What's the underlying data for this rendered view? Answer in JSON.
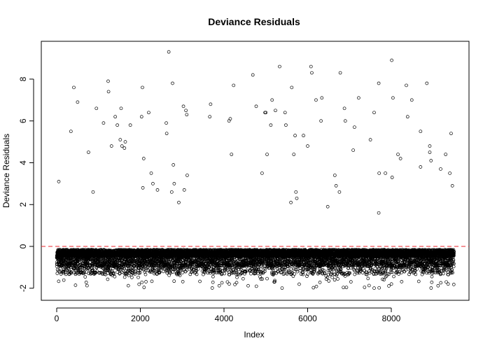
{
  "chart_data": {
    "type": "scatter",
    "title": "Deviance Residuals",
    "xlabel": "Index",
    "ylabel": "Deviance Residuals",
    "xlim": [
      0,
      9500
    ],
    "ylim": [
      -2.2,
      9.5
    ],
    "x_ticks": [
      0,
      2000,
      4000,
      6000,
      8000
    ],
    "y_ticks": [
      -2,
      0,
      2,
      4,
      6,
      8
    ],
    "x_tick_labels": [
      "0",
      "2000",
      "4000",
      "6000",
      "8000"
    ],
    "y_tick_labels": [
      "-2",
      "0",
      "2",
      "4",
      "6",
      "8"
    ],
    "reference_line": {
      "y": 0,
      "color": "#e8262b",
      "style": "dashed"
    },
    "n_points": 9500,
    "negative_band": {
      "typical_min": -1.3,
      "typical_max": -0.15,
      "extreme_min": -2.0
    },
    "positive_points": [
      {
        "x": 50,
        "y": 3.1
      },
      {
        "x": 340,
        "y": 5.5
      },
      {
        "x": 410,
        "y": 7.6
      },
      {
        "x": 500,
        "y": 6.9
      },
      {
        "x": 760,
        "y": 4.5
      },
      {
        "x": 870,
        "y": 2.6
      },
      {
        "x": 950,
        "y": 6.6
      },
      {
        "x": 1120,
        "y": 5.9
      },
      {
        "x": 1230,
        "y": 7.9
      },
      {
        "x": 1240,
        "y": 7.4
      },
      {
        "x": 1310,
        "y": 4.8
      },
      {
        "x": 1400,
        "y": 6.2
      },
      {
        "x": 1450,
        "y": 5.8
      },
      {
        "x": 1520,
        "y": 5.1
      },
      {
        "x": 1540,
        "y": 6.6
      },
      {
        "x": 1560,
        "y": 4.8
      },
      {
        "x": 1620,
        "y": 4.7
      },
      {
        "x": 1640,
        "y": 5.0
      },
      {
        "x": 1760,
        "y": 5.8
      },
      {
        "x": 2030,
        "y": 6.2
      },
      {
        "x": 2050,
        "y": 7.6
      },
      {
        "x": 2080,
        "y": 4.2
      },
      {
        "x": 2060,
        "y": 2.8
      },
      {
        "x": 2200,
        "y": 6.4
      },
      {
        "x": 2260,
        "y": 3.5
      },
      {
        "x": 2300,
        "y": 3.0
      },
      {
        "x": 2410,
        "y": 2.7
      },
      {
        "x": 2620,
        "y": 5.9
      },
      {
        "x": 2630,
        "y": 5.4
      },
      {
        "x": 2680,
        "y": 9.3
      },
      {
        "x": 2750,
        "y": 2.6
      },
      {
        "x": 2770,
        "y": 7.8
      },
      {
        "x": 2790,
        "y": 3.9
      },
      {
        "x": 2810,
        "y": 3.0
      },
      {
        "x": 2920,
        "y": 2.1
      },
      {
        "x": 3030,
        "y": 6.7
      },
      {
        "x": 3050,
        "y": 2.7
      },
      {
        "x": 3090,
        "y": 6.5
      },
      {
        "x": 3110,
        "y": 6.3
      },
      {
        "x": 3120,
        "y": 3.4
      },
      {
        "x": 3660,
        "y": 6.2
      },
      {
        "x": 3680,
        "y": 6.8
      },
      {
        "x": 4120,
        "y": 6.0
      },
      {
        "x": 4150,
        "y": 6.1
      },
      {
        "x": 4180,
        "y": 4.4
      },
      {
        "x": 4230,
        "y": 7.7
      },
      {
        "x": 4690,
        "y": 8.2
      },
      {
        "x": 4770,
        "y": 6.7
      },
      {
        "x": 4910,
        "y": 3.5
      },
      {
        "x": 4980,
        "y": 6.4
      },
      {
        "x": 5000,
        "y": 6.4
      },
      {
        "x": 5030,
        "y": 4.4
      },
      {
        "x": 5120,
        "y": 5.8
      },
      {
        "x": 5150,
        "y": 7.0
      },
      {
        "x": 5230,
        "y": 6.5
      },
      {
        "x": 5330,
        "y": 8.6
      },
      {
        "x": 5460,
        "y": 6.4
      },
      {
        "x": 5480,
        "y": 5.8
      },
      {
        "x": 5600,
        "y": 2.1
      },
      {
        "x": 5620,
        "y": 7.6
      },
      {
        "x": 5670,
        "y": 4.4
      },
      {
        "x": 5700,
        "y": 5.3
      },
      {
        "x": 5720,
        "y": 2.6
      },
      {
        "x": 5740,
        "y": 2.3
      },
      {
        "x": 5900,
        "y": 5.3
      },
      {
        "x": 6000,
        "y": 4.8
      },
      {
        "x": 6080,
        "y": 8.6
      },
      {
        "x": 6100,
        "y": 8.3
      },
      {
        "x": 6200,
        "y": 7.0
      },
      {
        "x": 6320,
        "y": 6.0
      },
      {
        "x": 6340,
        "y": 7.1
      },
      {
        "x": 6480,
        "y": 1.9
      },
      {
        "x": 6650,
        "y": 3.4
      },
      {
        "x": 6680,
        "y": 2.9
      },
      {
        "x": 6760,
        "y": 2.6
      },
      {
        "x": 6780,
        "y": 8.3
      },
      {
        "x": 6880,
        "y": 6.6
      },
      {
        "x": 6900,
        "y": 6.0
      },
      {
        "x": 7090,
        "y": 4.6
      },
      {
        "x": 7120,
        "y": 5.7
      },
      {
        "x": 7220,
        "y": 7.1
      },
      {
        "x": 7500,
        "y": 5.1
      },
      {
        "x": 7590,
        "y": 6.4
      },
      {
        "x": 7700,
        "y": 7.8
      },
      {
        "x": 7710,
        "y": 3.5
      },
      {
        "x": 7700,
        "y": 1.6
      },
      {
        "x": 7860,
        "y": 3.5
      },
      {
        "x": 8010,
        "y": 8.9
      },
      {
        "x": 8020,
        "y": 3.3
      },
      {
        "x": 8040,
        "y": 7.1
      },
      {
        "x": 8160,
        "y": 4.4
      },
      {
        "x": 8220,
        "y": 4.2
      },
      {
        "x": 8360,
        "y": 7.7
      },
      {
        "x": 8390,
        "y": 6.2
      },
      {
        "x": 8490,
        "y": 7.0
      },
      {
        "x": 8700,
        "y": 5.5
      },
      {
        "x": 8700,
        "y": 3.8
      },
      {
        "x": 8850,
        "y": 7.8
      },
      {
        "x": 8920,
        "y": 4.8
      },
      {
        "x": 8920,
        "y": 4.5
      },
      {
        "x": 8950,
        "y": 4.1
      },
      {
        "x": 9180,
        "y": 3.7
      },
      {
        "x": 9300,
        "y": 4.4
      },
      {
        "x": 9400,
        "y": 3.5
      },
      {
        "x": 9430,
        "y": 5.4
      },
      {
        "x": 9460,
        "y": 2.9
      }
    ]
  }
}
